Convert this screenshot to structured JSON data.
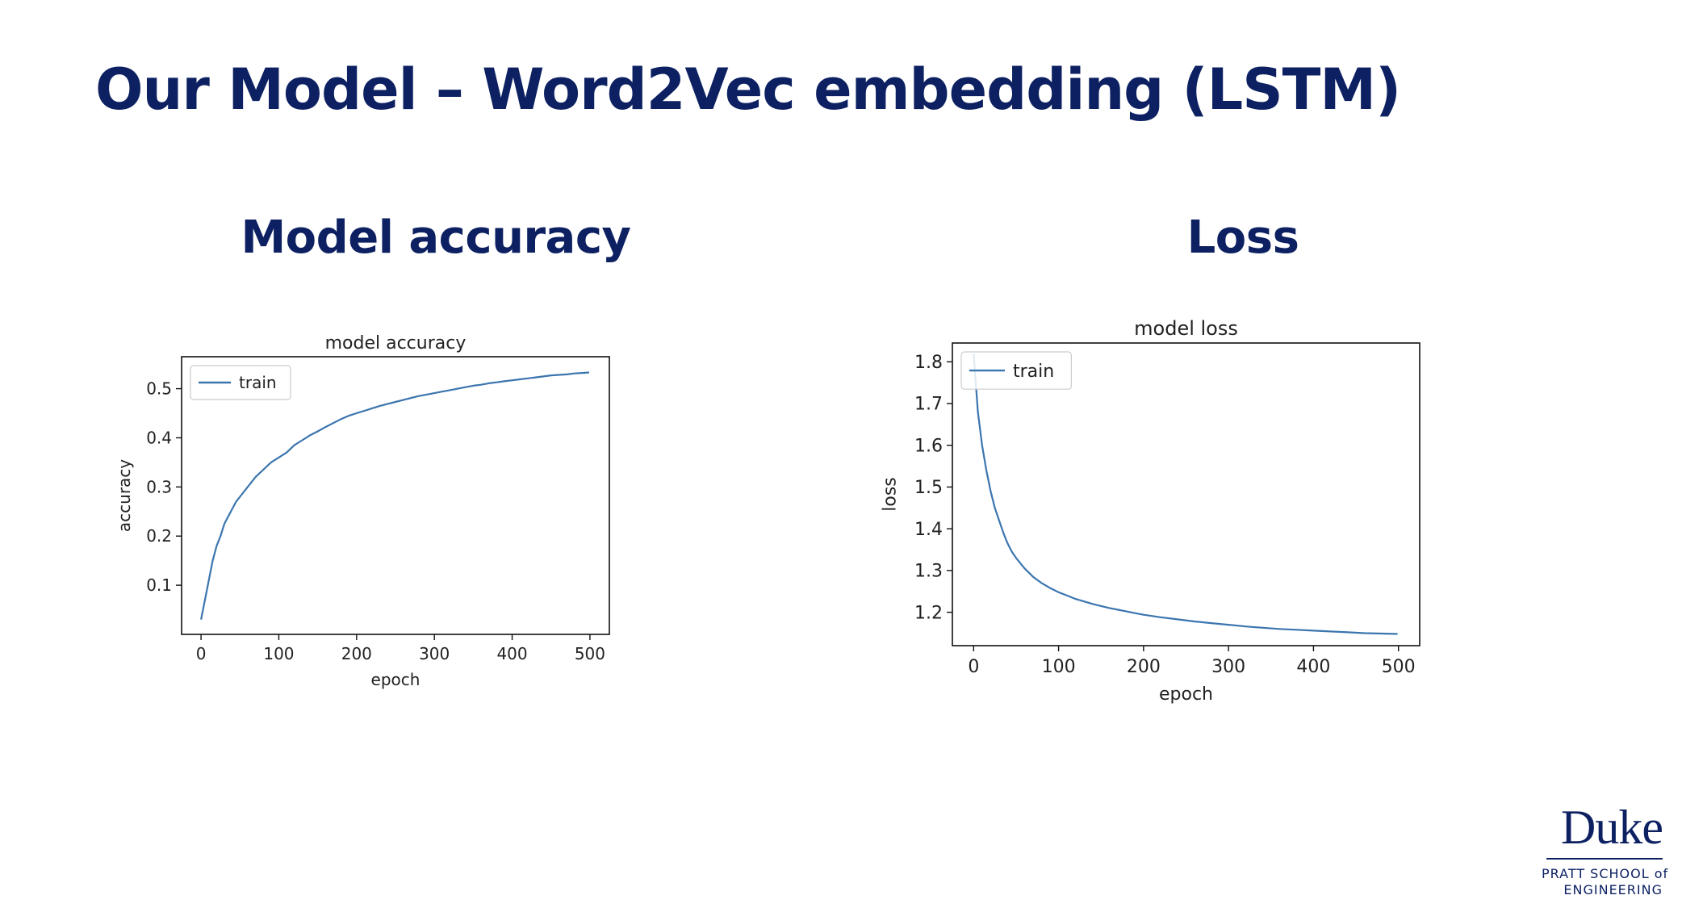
{
  "slide": {
    "title": "Our Model – Word2Vec embedding (LSTM)",
    "heading_accuracy": "Model accuracy",
    "heading_loss": "Loss"
  },
  "logo": {
    "word": "Duke",
    "line1": "PRATT SCHOOL of",
    "line2": "ENGINEERING"
  },
  "colors": {
    "heading": "#0d2162",
    "series": "#3b75af"
  },
  "chart_data": [
    {
      "type": "line",
      "title": "model accuracy",
      "xlabel": "epoch",
      "ylabel": "accuracy",
      "xlim": [
        -25,
        525
      ],
      "ylim": [
        0.0,
        0.565
      ],
      "xticks": [
        0,
        100,
        200,
        300,
        400,
        500
      ],
      "yticks": [
        0.1,
        0.2,
        0.3,
        0.4,
        0.5
      ],
      "legend": "upper-left",
      "grid": false,
      "series": [
        {
          "name": "train",
          "x": [
            0,
            5,
            10,
            15,
            20,
            25,
            30,
            35,
            40,
            45,
            50,
            60,
            70,
            80,
            90,
            100,
            110,
            120,
            130,
            140,
            150,
            160,
            170,
            180,
            190,
            200,
            210,
            220,
            230,
            240,
            250,
            260,
            270,
            280,
            290,
            300,
            310,
            320,
            330,
            340,
            350,
            360,
            370,
            380,
            390,
            400,
            410,
            420,
            430,
            440,
            450,
            460,
            470,
            480,
            490,
            499
          ],
          "y": [
            0.03,
            0.07,
            0.11,
            0.15,
            0.18,
            0.2,
            0.225,
            0.24,
            0.255,
            0.27,
            0.28,
            0.3,
            0.32,
            0.335,
            0.35,
            0.36,
            0.37,
            0.385,
            0.395,
            0.405,
            0.413,
            0.422,
            0.43,
            0.438,
            0.445,
            0.45,
            0.455,
            0.46,
            0.465,
            0.469,
            0.473,
            0.477,
            0.481,
            0.485,
            0.488,
            0.491,
            0.494,
            0.497,
            0.5,
            0.503,
            0.506,
            0.508,
            0.511,
            0.513,
            0.515,
            0.517,
            0.519,
            0.521,
            0.523,
            0.525,
            0.527,
            0.528,
            0.529,
            0.531,
            0.532,
            0.533
          ]
        }
      ]
    },
    {
      "type": "line",
      "title": "model loss",
      "xlabel": "epoch",
      "ylabel": "loss",
      "xlim": [
        -25,
        525
      ],
      "ylim": [
        1.12,
        1.845
      ],
      "xticks": [
        0,
        100,
        200,
        300,
        400,
        500
      ],
      "yticks": [
        1.2,
        1.3,
        1.4,
        1.5,
        1.6,
        1.7,
        1.8
      ],
      "legend": "upper-left",
      "grid": false,
      "series": [
        {
          "name": "train",
          "x": [
            0,
            5,
            10,
            15,
            20,
            25,
            30,
            35,
            40,
            45,
            50,
            60,
            70,
            80,
            90,
            100,
            110,
            120,
            130,
            140,
            150,
            160,
            170,
            180,
            190,
            200,
            220,
            240,
            260,
            280,
            300,
            320,
            340,
            360,
            380,
            400,
            420,
            440,
            460,
            480,
            499
          ],
          "y": [
            1.82,
            1.68,
            1.6,
            1.54,
            1.49,
            1.45,
            1.42,
            1.39,
            1.365,
            1.345,
            1.33,
            1.305,
            1.285,
            1.27,
            1.258,
            1.248,
            1.24,
            1.232,
            1.226,
            1.22,
            1.215,
            1.21,
            1.206,
            1.202,
            1.198,
            1.194,
            1.188,
            1.183,
            1.178,
            1.174,
            1.17,
            1.166,
            1.163,
            1.16,
            1.158,
            1.156,
            1.154,
            1.152,
            1.15,
            1.149,
            1.148
          ]
        }
      ]
    }
  ]
}
